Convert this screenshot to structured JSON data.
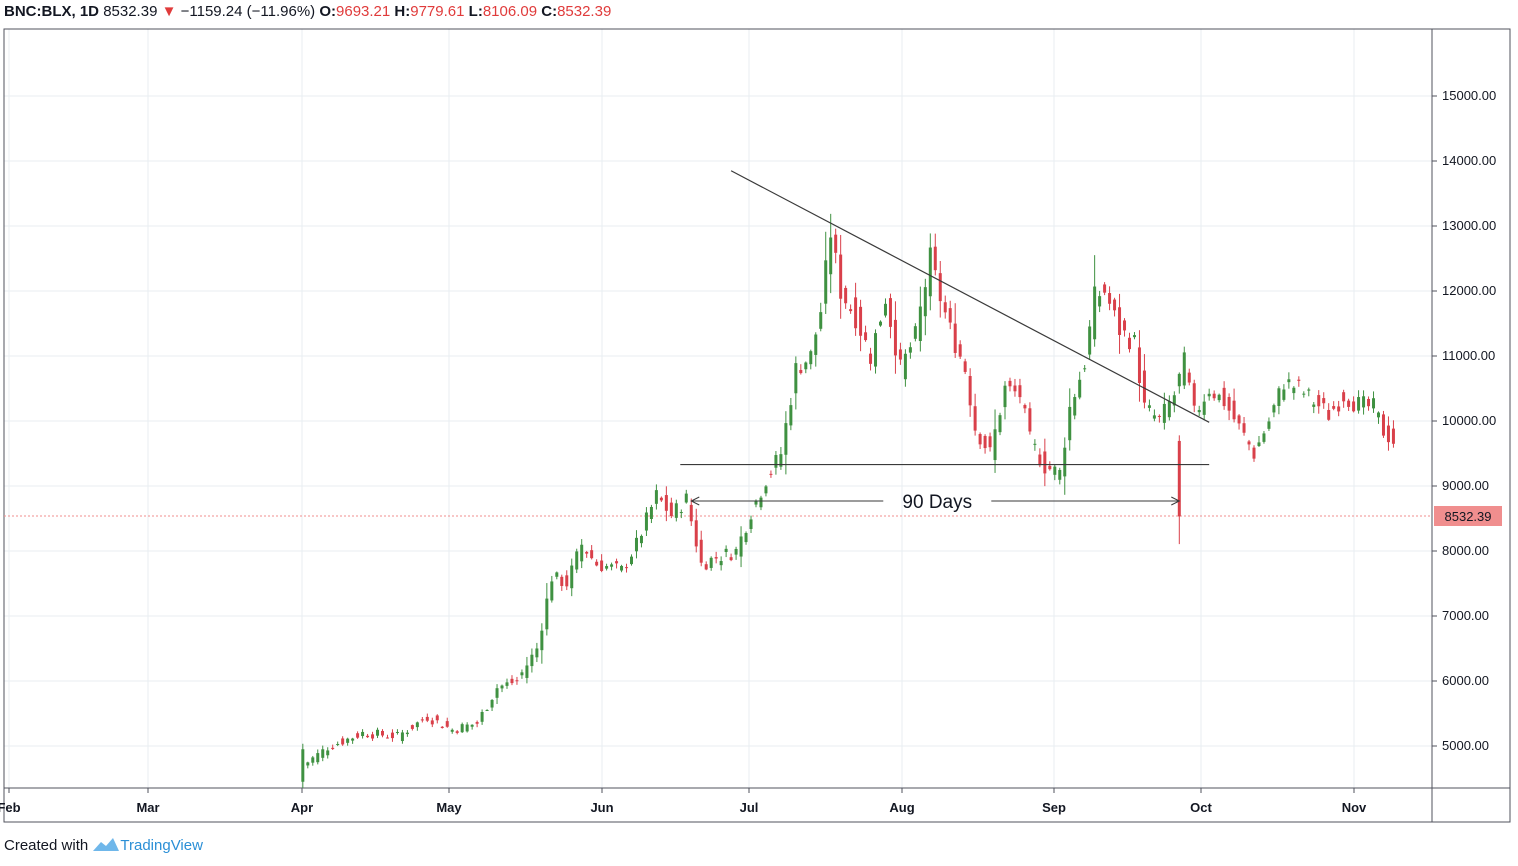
{
  "header": {
    "symbol": "BNC:BLX, 1D",
    "last": "8532.39",
    "change": "−1159.24 (−11.96%)",
    "o_label": "O:",
    "o_value": "9693.21",
    "h_label": "H:",
    "h_value": "9779.61",
    "l_label": "L:",
    "l_value": "8106.09",
    "c_label": "C:",
    "c_value": "8532.39"
  },
  "footer": {
    "created_with": "Created with",
    "brand": "TradingView"
  },
  "colors": {
    "up": "#3f9141",
    "down": "#d9404a",
    "grid": "#e9edf2",
    "price_label_bg": "#f08e8e",
    "line": "#3a3a3a"
  },
  "chart_data": {
    "type": "candlestick",
    "y_ticks": [
      "5000.00",
      "6000.00",
      "7000.00",
      "8000.00",
      "9000.00",
      "10000.00",
      "11000.00",
      "12000.00",
      "13000.00",
      "14000.00",
      "15000.00"
    ],
    "x_ticks": [
      "Feb",
      "Mar",
      "Apr",
      "May",
      "Jun",
      "Jul",
      "Aug",
      "Sep",
      "Oct",
      "Nov"
    ],
    "last_price_label": "8532.39",
    "last_price": 8532.39,
    "ylim": [
      4400,
      16000
    ],
    "annotation": {
      "text": "90 Days",
      "from": "Jun 18",
      "to": "Sep 24"
    },
    "trendline_resistance": {
      "from": {
        "date": "Jun 26",
        "value": 13850
      },
      "to": {
        "date": "Sep 30",
        "value": 9980
      }
    },
    "support_line": {
      "value": 9330,
      "from": "Jun 17",
      "to": "Sep 30"
    },
    "key_points": [
      {
        "date": "Apr 1",
        "close": 4900
      },
      {
        "date": "May 1",
        "close": 5250
      },
      {
        "date": "Jun 1",
        "close": 8650
      },
      {
        "date": "Jun 26",
        "high": 13850
      },
      {
        "date": "Jul 10",
        "high": 13200
      },
      {
        "date": "Aug 6",
        "high": 12300
      },
      {
        "date": "Sep 1",
        "close": 9600
      },
      {
        "date": "Sep 24",
        "open": 9693.21,
        "high": 9779.61,
        "low": 8106.09,
        "close": 8532.39
      }
    ]
  }
}
